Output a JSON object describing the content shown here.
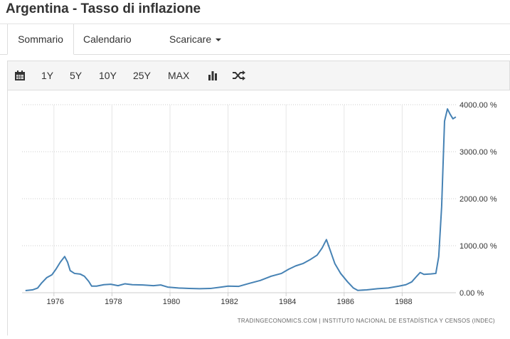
{
  "header": {
    "title": "Argentina - Tasso di inflazione"
  },
  "tabs": [
    "Sommario",
    "Calendario",
    "Scaricare"
  ],
  "toolbar": [
    "1Y",
    "5Y",
    "10Y",
    "25Y",
    "MAX"
  ],
  "chart_data": {
    "type": "line",
    "color": "#4682b4",
    "grid": true,
    "source": "TRADINGECONOMICS.COM | INSTITUTO NACIONAL DE ESTADÍSTICA Y CENSOS (INDEC)",
    "x": [
      1975.02,
      1975.26,
      1975.44,
      1975.58,
      1975.75,
      1975.93,
      1976.07,
      1976.22,
      1976.37,
      1976.47,
      1976.56,
      1976.71,
      1976.91,
      1977.05,
      1977.2,
      1977.3,
      1977.47,
      1977.72,
      1977.96,
      1978.21,
      1978.45,
      1978.7,
      1979.06,
      1979.43,
      1979.68,
      1979.92,
      1980.29,
      1980.66,
      1981.02,
      1981.39,
      1981.76,
      1982.0,
      1982.37,
      1982.74,
      1983.11,
      1983.48,
      1983.84,
      1984.09,
      1984.33,
      1984.58,
      1984.82,
      1985.07,
      1985.24,
      1985.39,
      1985.51,
      1985.68,
      1985.88,
      1986.12,
      1986.32,
      1986.47,
      1986.78,
      1987.15,
      1987.52,
      1987.89,
      1988.13,
      1988.33,
      1988.5,
      1988.62,
      1988.75,
      1988.99,
      1989.16,
      1989.26,
      1989.36,
      1989.46,
      1989.56,
      1989.65,
      1989.75,
      1989.85
    ],
    "values": [
      45,
      60,
      100,
      210,
      320,
      380,
      500,
      650,
      770,
      650,
      470,
      410,
      395,
      350,
      240,
      140,
      140,
      170,
      180,
      150,
      190,
      170,
      165,
      150,
      165,
      120,
      100,
      90,
      85,
      90,
      120,
      140,
      135,
      200,
      260,
      350,
      410,
      500,
      570,
      620,
      700,
      800,
      950,
      1130,
      920,
      620,
      410,
      230,
      100,
      50,
      60,
      85,
      100,
      140,
      170,
      230,
      350,
      430,
      390,
      400,
      410,
      770,
      1830,
      3650,
      3910,
      3800,
      3700,
      3740
    ],
    "xlim": [
      1975,
      1990
    ],
    "xticks": [
      1976,
      1978,
      1980,
      1982,
      1984,
      1986,
      1988
    ],
    "ylim": [
      0,
      4000
    ],
    "yticks": [
      {
        "value": 0,
        "label": "0.00 %"
      },
      {
        "value": 1000,
        "label": "1000.00 %"
      },
      {
        "value": 2000,
        "label": "2000.00 %"
      },
      {
        "value": 3000,
        "label": "3000.00 %"
      },
      {
        "value": 4000,
        "label": "4000.00 %"
      }
    ]
  }
}
